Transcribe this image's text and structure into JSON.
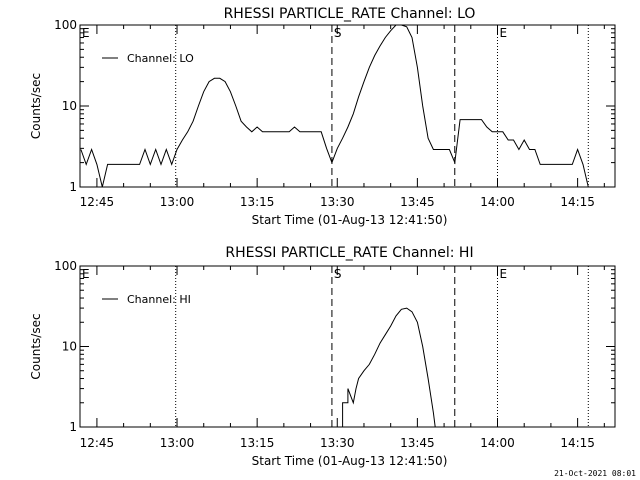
{
  "footer": {
    "timestamp": "21-Oct-2021 08:01"
  },
  "chart_data": [
    {
      "type": "line",
      "title": "RHESSI PARTICLE_RATE Channel: LO",
      "xlabel": "Start Time (01-Aug-13 12:41:50)",
      "ylabel": "Counts/sec",
      "yscale": "log",
      "ylim": [
        1,
        100
      ],
      "xlim": [
        "12:41:50",
        "14:22:00"
      ],
      "x_ticks": [
        "12:45",
        "13:00",
        "13:15",
        "13:30",
        "13:45",
        "14:00",
        "14:15"
      ],
      "y_ticks": [
        "1",
        "10",
        "100"
      ],
      "legend": {
        "position": "top-left",
        "entries": [
          "Channel: LO"
        ]
      },
      "event_markers": [
        {
          "label": "E",
          "time": "12:41:50",
          "style": "dotted"
        },
        {
          "label": "",
          "time": "12:59:45",
          "style": "dotted"
        },
        {
          "label": "S",
          "time": "13:29:00",
          "style": "dashed"
        },
        {
          "label": "",
          "time": "13:52:00",
          "style": "dashed"
        },
        {
          "label": "E",
          "time": "14:00:00",
          "style": "dotted"
        },
        {
          "label": "",
          "time": "14:17:00",
          "style": "dotted"
        }
      ],
      "series": [
        {
          "name": "Channel: LO",
          "x": [
            "12:42",
            "12:43",
            "12:44",
            "12:45",
            "12:46",
            "12:47",
            "12:48",
            "12:49",
            "12:50",
            "12:51",
            "12:52",
            "12:53",
            "12:54",
            "12:55",
            "12:56",
            "12:57",
            "12:58",
            "12:59",
            "13:00",
            "13:01",
            "13:02",
            "13:03",
            "13:04",
            "13:05",
            "13:06",
            "13:07",
            "13:08",
            "13:09",
            "13:10",
            "13:11",
            "13:12",
            "13:13",
            "13:14",
            "13:15",
            "13:16",
            "13:17",
            "13:18",
            "13:19",
            "13:20",
            "13:21",
            "13:22",
            "13:23",
            "13:24",
            "13:25",
            "13:26",
            "13:27",
            "13:28",
            "13:29",
            "13:30",
            "13:31",
            "13:32",
            "13:33",
            "13:34",
            "13:35",
            "13:36",
            "13:37",
            "13:38",
            "13:39",
            "13:40",
            "13:41",
            "13:42",
            "13:43",
            "13:44",
            "13:45",
            "13:46",
            "13:47",
            "13:48",
            "13:49",
            "13:50",
            "13:51",
            "13:52",
            "13:53",
            "13:54",
            "13:55",
            "13:56",
            "13:57",
            "13:58",
            "13:59",
            "14:00",
            "14:01",
            "14:02",
            "14:03",
            "14:04",
            "14:05",
            "14:06",
            "14:07",
            "14:08",
            "14:09",
            "14:10",
            "14:11",
            "14:12",
            "14:13",
            "14:14",
            "14:15",
            "14:16",
            "14:17"
          ],
          "y": [
            2.9,
            1.9,
            2.9,
            1.9,
            1.0,
            1.9,
            1.9,
            1.9,
            1.9,
            1.9,
            1.9,
            1.9,
            2.9,
            1.9,
            2.9,
            1.9,
            2.9,
            1.9,
            2.9,
            3.8,
            4.8,
            6.5,
            10,
            15,
            20,
            22,
            22,
            20,
            15,
            10,
            6.5,
            5.5,
            4.8,
            5.5,
            4.8,
            4.8,
            4.8,
            4.8,
            4.8,
            4.8,
            5.5,
            4.8,
            4.8,
            4.8,
            4.8,
            4.8,
            3.0,
            2.0,
            3.0,
            4.0,
            5.5,
            8.0,
            13,
            20,
            30,
            42,
            55,
            70,
            85,
            100,
            100,
            95,
            70,
            30,
            10,
            4.0,
            2.9,
            2.9,
            2.9,
            2.9,
            2.0,
            6.8,
            6.8,
            6.8,
            6.8,
            6.8,
            5.5,
            4.8,
            4.8,
            4.8,
            3.8,
            3.8,
            2.9,
            3.8,
            2.9,
            2.9,
            1.9,
            1.9,
            1.9,
            1.9,
            1.9,
            1.9,
            1.9,
            2.9,
            1.9,
            1.0
          ]
        }
      ]
    },
    {
      "type": "line",
      "title": "RHESSI PARTICLE_RATE Channel: HI",
      "xlabel": "Start Time (01-Aug-13 12:41:50)",
      "ylabel": "Counts/sec",
      "yscale": "log",
      "ylim": [
        1,
        100
      ],
      "xlim": [
        "12:41:50",
        "14:22:00"
      ],
      "x_ticks": [
        "12:45",
        "13:00",
        "13:15",
        "13:30",
        "13:45",
        "14:00",
        "14:15"
      ],
      "y_ticks": [
        "1",
        "10",
        "100"
      ],
      "legend": {
        "position": "top-left",
        "entries": [
          "Channel: HI"
        ]
      },
      "event_markers": [
        {
          "label": "E",
          "time": "12:41:50",
          "style": "dotted"
        },
        {
          "label": "",
          "time": "12:59:45",
          "style": "dotted"
        },
        {
          "label": "S",
          "time": "13:29:00",
          "style": "dashed"
        },
        {
          "label": "",
          "time": "13:52:00",
          "style": "dashed"
        },
        {
          "label": "E",
          "time": "14:00:00",
          "style": "dotted"
        },
        {
          "label": "",
          "time": "14:17:00",
          "style": "dotted"
        }
      ],
      "series": [
        {
          "name": "Channel: HI",
          "x": [
            "13:30:00",
            "13:31:00",
            "13:31:00",
            "13:32:00",
            "13:32:00",
            "13:33:00",
            "13:33:30",
            "13:34:00",
            "13:35:00",
            "13:36:00",
            "13:37:00",
            "13:38:00",
            "13:39:00",
            "13:40:00",
            "13:41:00",
            "13:42:00",
            "13:43:00",
            "13:44:00",
            "13:45:00",
            "13:46:00",
            "13:47:00",
            "13:48:00",
            "13:48:20"
          ],
          "y": [
            1.0,
            1.0,
            2.0,
            2.0,
            3.0,
            2.0,
            3.0,
            4.0,
            5.0,
            6.0,
            8.0,
            11,
            14,
            18,
            24,
            29,
            30,
            27,
            20,
            10,
            4.0,
            1.5,
            1.0
          ]
        }
      ]
    }
  ]
}
